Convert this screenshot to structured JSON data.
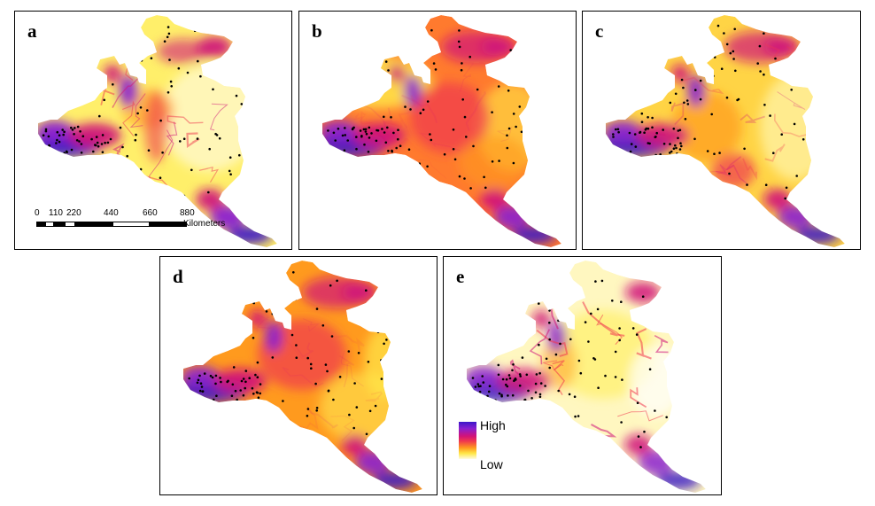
{
  "panels": [
    {
      "label": "a",
      "style": "mixed"
    },
    {
      "label": "b",
      "style": "smooth"
    },
    {
      "label": "c",
      "style": "mid"
    },
    {
      "label": "d",
      "style": "smooth-hot"
    },
    {
      "label": "e",
      "style": "cool"
    }
  ],
  "scale_bar": {
    "ticks": [
      "0",
      "110",
      "220",
      "440",
      "660",
      "880"
    ],
    "units": "Kilometers"
  },
  "legend": {
    "high": "High",
    "low": "Low",
    "colors": [
      "#3b18c8",
      "#8a1fd0",
      "#d0137a",
      "#f0374e",
      "#ff9a1e",
      "#ffe848",
      "#fffbe0"
    ]
  }
}
